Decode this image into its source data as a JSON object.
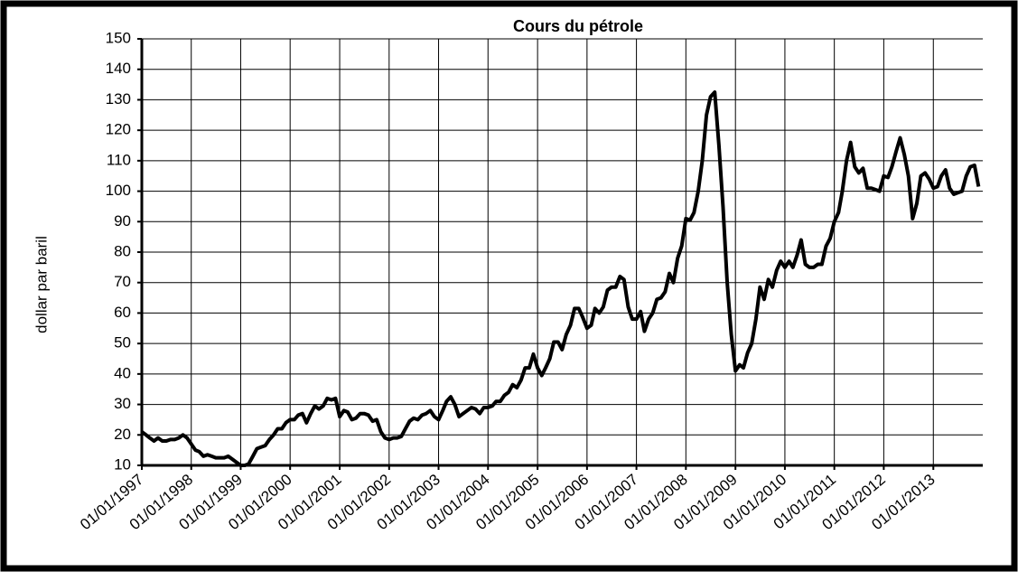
{
  "chart_data": {
    "type": "line",
    "title": "Cours du pétrole",
    "y_label": "dollar  par  baril",
    "color": "#000000",
    "grid": true,
    "xlim": [
      "1997-01-01",
      "2014-01-01"
    ],
    "xticks": [
      {
        "value": "1997-01-01",
        "label": "01/01/1997"
      },
      {
        "value": "1998-01-01",
        "label": "01/01/1998"
      },
      {
        "value": "1999-01-01",
        "label": "01/01/1999"
      },
      {
        "value": "2000-01-01",
        "label": "01/01/2000"
      },
      {
        "value": "2001-01-01",
        "label": "01/01/2001"
      },
      {
        "value": "2002-01-01",
        "label": "01/01/2002"
      },
      {
        "value": "2003-01-01",
        "label": "01/01/2003"
      },
      {
        "value": "2004-01-01",
        "label": "01/01/2004"
      },
      {
        "value": "2005-01-01",
        "label": "01/01/2005"
      },
      {
        "value": "2006-01-01",
        "label": "01/01/2006"
      },
      {
        "value": "2007-01-01",
        "label": "01/01/2007"
      },
      {
        "value": "2008-01-01",
        "label": "01/01/2008"
      },
      {
        "value": "2009-01-01",
        "label": "01/01/2009"
      },
      {
        "value": "2010-01-01",
        "label": "01/01/2010"
      },
      {
        "value": "2011-01-01",
        "label": "01/01/2011"
      },
      {
        "value": "2012-01-01",
        "label": "01/01/2012"
      },
      {
        "value": "2013-01-01",
        "label": "01/01/2013"
      }
    ],
    "ylim": [
      10,
      150
    ],
    "yticks": [
      10,
      20,
      30,
      40,
      50,
      60,
      70,
      80,
      90,
      100,
      110,
      120,
      130,
      140,
      150
    ],
    "x": [
      "1997-01-01",
      "1997-02-01",
      "1997-03-01",
      "1997-04-01",
      "1997-05-01",
      "1997-06-01",
      "1997-07-01",
      "1997-08-01",
      "1997-09-01",
      "1997-10-01",
      "1997-11-01",
      "1997-12-01",
      "1998-01-01",
      "1998-02-01",
      "1998-03-01",
      "1998-04-01",
      "1998-05-01",
      "1998-06-01",
      "1998-07-01",
      "1998-08-01",
      "1998-09-01",
      "1998-10-01",
      "1998-11-01",
      "1998-12-01",
      "1999-01-01",
      "1999-02-01",
      "1999-03-01",
      "1999-04-01",
      "1999-05-01",
      "1999-06-01",
      "1999-07-01",
      "1999-08-01",
      "1999-09-01",
      "1999-10-01",
      "1999-11-01",
      "1999-12-01",
      "2000-01-01",
      "2000-02-01",
      "2000-03-01",
      "2000-04-01",
      "2000-05-01",
      "2000-06-01",
      "2000-07-01",
      "2000-08-01",
      "2000-09-01",
      "2000-10-01",
      "2000-11-01",
      "2000-12-01",
      "2001-01-01",
      "2001-02-01",
      "2001-03-01",
      "2001-04-01",
      "2001-05-01",
      "2001-06-01",
      "2001-07-01",
      "2001-08-01",
      "2001-09-01",
      "2001-10-01",
      "2001-11-01",
      "2001-12-01",
      "2002-01-01",
      "2002-02-01",
      "2002-03-01",
      "2002-04-01",
      "2002-05-01",
      "2002-06-01",
      "2002-07-01",
      "2002-08-01",
      "2002-09-01",
      "2002-10-01",
      "2002-11-01",
      "2002-12-01",
      "2003-01-01",
      "2003-02-01",
      "2003-03-01",
      "2003-04-01",
      "2003-05-01",
      "2003-06-01",
      "2003-07-01",
      "2003-08-01",
      "2003-09-01",
      "2003-10-01",
      "2003-11-01",
      "2003-12-01",
      "2004-01-01",
      "2004-02-01",
      "2004-03-01",
      "2004-04-01",
      "2004-05-01",
      "2004-06-01",
      "2004-07-01",
      "2004-08-01",
      "2004-09-01",
      "2004-10-01",
      "2004-11-01",
      "2004-12-01",
      "2005-01-01",
      "2005-02-01",
      "2005-03-01",
      "2005-04-01",
      "2005-05-01",
      "2005-06-01",
      "2005-07-01",
      "2005-08-01",
      "2005-09-01",
      "2005-10-01",
      "2005-11-01",
      "2005-12-01",
      "2006-01-01",
      "2006-02-01",
      "2006-03-01",
      "2006-04-01",
      "2006-05-01",
      "2006-06-01",
      "2006-07-01",
      "2006-08-01",
      "2006-09-01",
      "2006-10-01",
      "2006-11-01",
      "2006-12-01",
      "2007-01-01",
      "2007-02-01",
      "2007-03-01",
      "2007-04-01",
      "2007-05-01",
      "2007-06-01",
      "2007-07-01",
      "2007-08-01",
      "2007-09-01",
      "2007-10-01",
      "2007-11-01",
      "2007-12-01",
      "2008-01-01",
      "2008-02-01",
      "2008-03-01",
      "2008-04-01",
      "2008-05-01",
      "2008-06-01",
      "2008-07-01",
      "2008-08-01",
      "2008-09-01",
      "2008-10-01",
      "2008-11-01",
      "2008-12-01",
      "2009-01-01",
      "2009-02-01",
      "2009-03-01",
      "2009-04-01",
      "2009-05-01",
      "2009-06-01",
      "2009-07-01",
      "2009-08-01",
      "2009-09-01",
      "2009-10-01",
      "2009-11-01",
      "2009-12-01",
      "2010-01-01",
      "2010-02-01",
      "2010-03-01",
      "2010-04-01",
      "2010-05-01",
      "2010-06-01",
      "2010-07-01",
      "2010-08-01",
      "2010-09-01",
      "2010-10-01",
      "2010-11-01",
      "2010-12-01",
      "2011-01-01",
      "2011-02-01",
      "2011-03-01",
      "2011-04-01",
      "2011-05-01",
      "2011-06-01",
      "2011-07-01",
      "2011-08-01",
      "2011-09-01",
      "2011-10-01",
      "2011-11-01",
      "2011-12-01",
      "2012-01-01",
      "2012-02-01",
      "2012-03-01",
      "2012-04-01",
      "2012-05-01",
      "2012-06-01",
      "2012-07-01",
      "2012-08-01",
      "2012-09-01",
      "2012-10-01",
      "2012-11-01",
      "2012-12-01",
      "2013-01-01",
      "2013-02-01",
      "2013-03-01",
      "2013-04-01",
      "2013-05-01",
      "2013-06-01",
      "2013-07-01",
      "2013-08-01",
      "2013-09-01",
      "2013-10-01",
      "2013-11-01",
      "2013-12-01"
    ],
    "values": [
      21,
      20,
      19,
      18,
      19,
      18,
      18,
      18.5,
      18.5,
      19,
      20,
      19,
      17,
      15,
      14.5,
      13,
      13.5,
      13,
      12.5,
      12.5,
      12.5,
      13,
      12,
      11,
      10,
      10,
      10.5,
      13,
      15.5,
      16,
      16.5,
      18.5,
      20,
      22,
      22,
      24,
      25,
      25,
      26.5,
      27,
      24,
      27,
      29.5,
      28.5,
      29.5,
      32,
      31.5,
      32,
      26,
      28,
      27.5,
      25,
      25.5,
      27,
      27,
      26.5,
      24.5,
      25,
      21,
      19,
      18.5,
      19,
      19,
      19.5,
      22,
      24.5,
      25.5,
      25,
      26.5,
      27,
      28,
      26,
      25,
      28,
      31,
      32.5,
      30,
      26,
      27,
      28,
      29,
      28.5,
      27,
      29,
      29,
      29.5,
      31,
      31,
      33,
      34,
      36.5,
      35.5,
      38,
      42,
      42,
      46.5,
      42,
      39.5,
      42,
      45,
      50.5,
      50.5,
      48,
      53,
      56,
      61.5,
      61.5,
      58.5,
      55,
      56,
      61.5,
      60,
      62,
      67.5,
      68.5,
      68.5,
      72,
      71,
      62,
      58,
      58,
      60.5,
      54,
      58,
      60,
      64.5,
      65,
      67,
      73,
      70,
      78,
      82,
      91,
      90.5,
      93,
      100,
      110,
      125,
      131,
      132.5,
      115,
      95,
      70,
      53,
      41,
      43,
      42,
      47,
      50,
      58,
      68.5,
      64.5,
      71,
      68.5,
      74,
      77,
      75,
      77,
      75,
      79,
      84,
      76,
      75,
      75,
      76,
      76,
      82,
      84.5,
      90,
      93,
      100,
      110,
      116,
      108,
      106,
      107.5,
      101,
      101,
      100.5,
      100,
      105,
      104.5,
      108,
      113,
      117.5,
      112,
      105,
      91,
      96,
      105,
      106,
      104,
      101,
      101.5,
      105,
      107,
      101,
      99,
      99.5,
      100,
      105,
      108,
      108.5,
      101.5
    ]
  }
}
